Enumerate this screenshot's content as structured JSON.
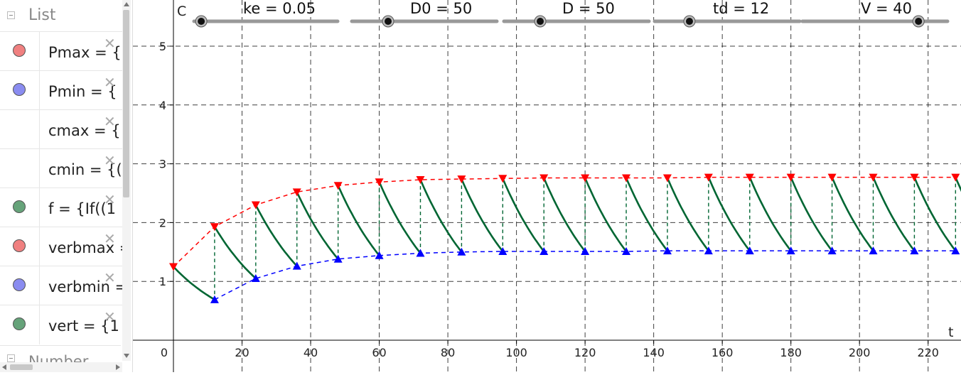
{
  "algebra": {
    "category_list": "List",
    "category_number": "Number",
    "items": [
      {
        "expr": "Pmax = {",
        "color": "#f08080"
      },
      {
        "expr": "Pmin = {",
        "color": "#8a8cf0"
      },
      {
        "expr": "cmax = {",
        "color": ""
      },
      {
        "expr": "cmin = {(",
        "color": ""
      },
      {
        "expr": "f = {If((1",
        "color": "#66a37a"
      },
      {
        "expr": "verbmax =",
        "color": "#f08080"
      },
      {
        "expr": "verbmin =",
        "color": "#8a8cf0"
      },
      {
        "expr": "vert = {1",
        "color": "#66a37a"
      }
    ]
  },
  "graph": {
    "x_axis_label": "t",
    "y_axis_label": "C",
    "x_ticks": [
      "0",
      "20",
      "40",
      "60",
      "80",
      "100",
      "120",
      "140",
      "160",
      "180",
      "200",
      "220"
    ],
    "y_ticks": [
      "1",
      "2",
      "3",
      "4",
      "5"
    ],
    "colors": {
      "max": "#ff0000",
      "min": "#0000ff",
      "curve": "#006633",
      "grid": "#000000"
    }
  },
  "sliders": [
    {
      "label": "ke = 0.05",
      "min": 0,
      "max": 1,
      "value": 0.05
    },
    {
      "label": "D0 = 50",
      "min": 0,
      "max": 200,
      "value": 50
    },
    {
      "label": "D = 50",
      "min": 0,
      "max": 200,
      "value": 50
    },
    {
      "label": "td = 12",
      "min": 0,
      "max": 50,
      "value": 12
    },
    {
      "label": "V = 40",
      "min": 0,
      "max": 50,
      "value": 40
    }
  ],
  "chart_data": {
    "type": "line",
    "title": "",
    "xlabel": "t",
    "ylabel": "C",
    "xlim": [
      -3,
      230
    ],
    "ylim": [
      -0.5,
      5.6
    ],
    "grid": true,
    "series": [
      {
        "values": [
          [
            0,
            1.25
          ],
          [
            12,
            1.93
          ],
          [
            24,
            2.3
          ],
          [
            36,
            2.52
          ],
          [
            48,
            2.63
          ],
          [
            60,
            2.69
          ],
          [
            72,
            2.73
          ],
          [
            84,
            2.74
          ],
          [
            96,
            2.75
          ],
          [
            108,
            2.76
          ],
          [
            120,
            2.76
          ],
          [
            132,
            2.76
          ],
          [
            144,
            2.76
          ],
          [
            156,
            2.77
          ],
          [
            168,
            2.77
          ],
          [
            180,
            2.77
          ],
          [
            192,
            2.77
          ],
          [
            204,
            2.77
          ],
          [
            216,
            2.77
          ],
          [
            228,
            2.77
          ]
        ]
      },
      {
        "values": [
          [
            12,
            0.69
          ],
          [
            24,
            1.05
          ],
          [
            36,
            1.26
          ],
          [
            48,
            1.38
          ],
          [
            60,
            1.44
          ],
          [
            72,
            1.48
          ],
          [
            84,
            1.5
          ],
          [
            96,
            1.51
          ],
          [
            108,
            1.51
          ],
          [
            120,
            1.51
          ],
          [
            132,
            1.51
          ],
          [
            144,
            1.52
          ],
          [
            156,
            1.52
          ],
          [
            168,
            1.52
          ],
          [
            180,
            1.52
          ],
          [
            192,
            1.52
          ],
          [
            204,
            1.52
          ],
          [
            216,
            1.52
          ],
          [
            228,
            1.52
          ]
        ]
      }
    ]
  }
}
